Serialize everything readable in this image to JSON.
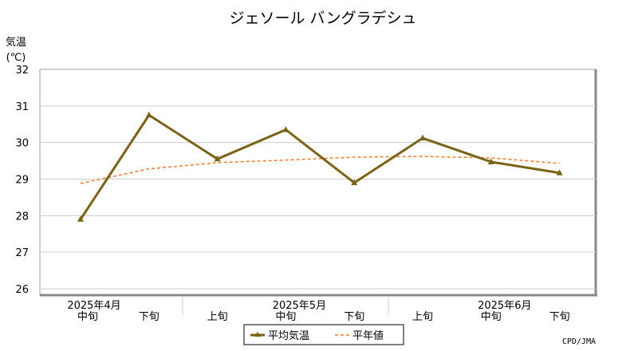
{
  "chart_data": {
    "type": "line",
    "title": "ジェソール バングラデシュ",
    "ylabel": "気温",
    "yunit": "(℃)",
    "ylim": [
      26,
      32
    ],
    "yticks": [
      26,
      27,
      28,
      29,
      30,
      31,
      32
    ],
    "grid": true,
    "x": [
      "4月中旬",
      "4月下旬",
      "5月上旬",
      "5月中旬",
      "5月下旬",
      "6月上旬",
      "6月中旬",
      "6月下旬"
    ],
    "tick_labels": [
      "中旬",
      "下旬",
      "上旬",
      "中旬",
      "下旬",
      "上旬",
      "中旬",
      "下旬"
    ],
    "month_labels": [
      {
        "label": "2025年4月",
        "index": 0
      },
      {
        "label": "2025年5月",
        "index": 3
      },
      {
        "label": "2025年6月",
        "index": 6
      }
    ],
    "series": [
      {
        "name": "平均気温",
        "color": "#7a6216",
        "style": "solid-marker",
        "values": [
          27.9,
          30.75,
          29.55,
          30.35,
          28.9,
          30.12,
          29.47,
          29.17
        ]
      },
      {
        "name": "平年値",
        "color": "#f07a28",
        "style": "dashed",
        "values": [
          28.88,
          29.28,
          29.45,
          29.52,
          29.6,
          29.62,
          29.58,
          29.43
        ]
      }
    ],
    "legend": "bottom-center",
    "credit": "CPD/JMA"
  }
}
